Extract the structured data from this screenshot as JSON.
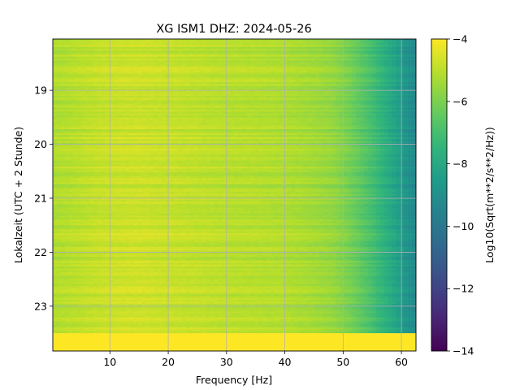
{
  "chart_data": {
    "type": "heatmap",
    "title": "XG ISM1  DHZ: 2024-05-26",
    "xlabel": "Frequency [Hz]",
    "ylabel": "Lokalzeit (UTC + 2 Stunde)",
    "xlim": [
      0.2,
      62.5
    ],
    "ylim": [
      23.83,
      18.05
    ],
    "x_ticks": [
      10,
      20,
      30,
      40,
      50,
      60
    ],
    "x_tick_labels": [
      "10",
      "20",
      "30",
      "40",
      "50",
      "60"
    ],
    "y_ticks": [
      19,
      20,
      21,
      22,
      23
    ],
    "y_tick_labels": [
      "19",
      "20",
      "21",
      "22",
      "23"
    ],
    "grid": true,
    "colormap": "viridis",
    "colorbar": {
      "label": "Log10(Sqrt(m**2/s**2/Hz))",
      "range": [
        -14,
        -4
      ],
      "ticks": [
        -4,
        -6,
        -8,
        -10,
        -12,
        -14
      ],
      "tick_labels": [
        "−4",
        "−6",
        "−8",
        "−10",
        "−12",
        "−14"
      ]
    },
    "profile": {
      "frequency_hz": [
        0.2,
        5,
        10,
        15,
        20,
        25,
        30,
        35,
        40,
        44,
        48,
        50,
        52,
        55,
        57,
        59,
        61,
        62.5
      ],
      "log10_amplitude": [
        -5.2,
        -5.0,
        -4.8,
        -4.75,
        -4.85,
        -4.95,
        -5.05,
        -5.1,
        -5.2,
        -5.35,
        -5.6,
        -5.9,
        -6.3,
        -7.0,
        -7.6,
        -8.2,
        -8.9,
        -9.3
      ]
    },
    "saturated_block": {
      "time_from": 23.5,
      "time_to": 23.83,
      "value": -4.0
    }
  }
}
